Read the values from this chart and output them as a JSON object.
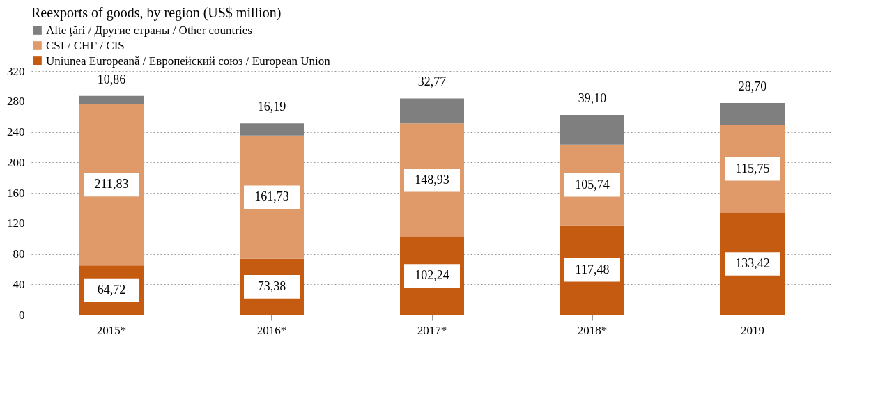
{
  "chart_data": {
    "type": "bar",
    "title": "Reexports of goods, by region (US$ million)",
    "stacked": true,
    "categories": [
      "2015*",
      "2016*",
      "2017*",
      "2018*",
      "2019"
    ],
    "series": [
      {
        "name": "Uniunea Europeană / Европейский союз / European Union",
        "color": "#c55a11",
        "values": [
          64.72,
          73.38,
          102.24,
          117.48,
          133.42
        ],
        "value_labels": [
          "64,72",
          "73,38",
          "102,24",
          "117,48",
          "133,42"
        ]
      },
      {
        "name": "CSI / СНГ / CIS",
        "color": "#e09a6a",
        "values": [
          211.83,
          161.73,
          148.93,
          105.74,
          115.75
        ],
        "value_labels": [
          "211,83",
          "161,73",
          "148,93",
          "105,74",
          "115,75"
        ]
      },
      {
        "name": "Alte țări / Другие страны / Other countries",
        "color": "#7f7f7f",
        "values": [
          10.86,
          16.19,
          32.77,
          39.1,
          28.7
        ],
        "value_labels": [
          "10,86",
          "16,19",
          "32,77",
          "39,10",
          "28,70"
        ]
      }
    ],
    "ylim": [
      0,
      320
    ],
    "yticks": [
      0,
      40,
      80,
      120,
      160,
      200,
      240,
      280,
      320
    ],
    "grid": "y",
    "legend": "top"
  }
}
